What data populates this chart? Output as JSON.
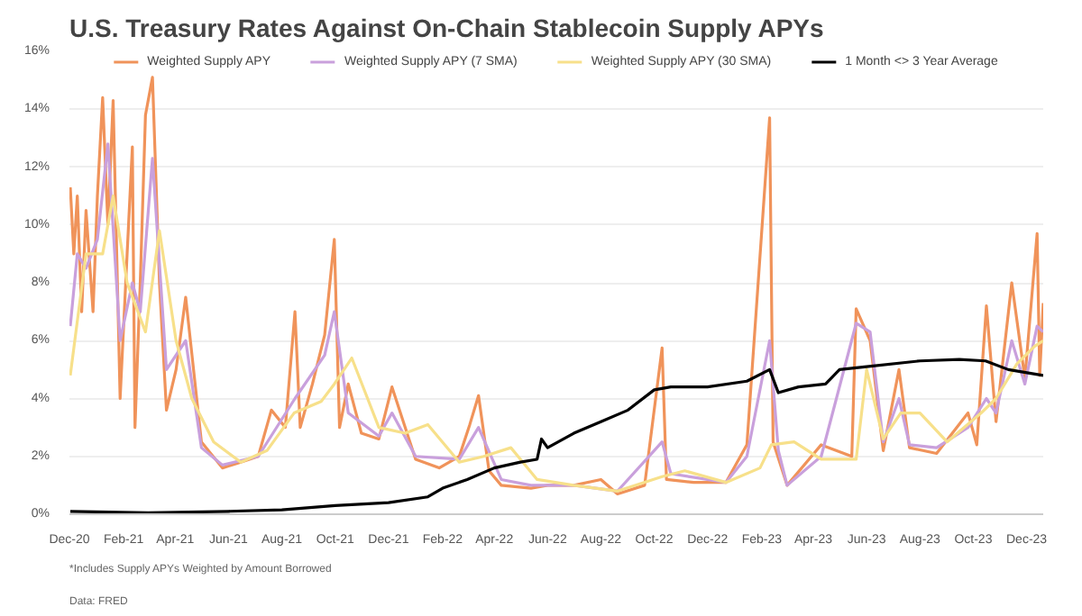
{
  "chart_data": {
    "type": "line",
    "title": "U.S. Treasury Rates Against On-Chain Stablecoin Supply APYs",
    "xlim": [
      "2020-12-01",
      "2023-12-20"
    ],
    "xticks": [
      {
        "value": "2020-12-01",
        "label": "Dec-20"
      },
      {
        "value": "2021-02-01",
        "label": "Feb-21"
      },
      {
        "value": "2021-04-01",
        "label": "Apr-21"
      },
      {
        "value": "2021-06-01",
        "label": "Jun-21"
      },
      {
        "value": "2021-08-01",
        "label": "Aug-21"
      },
      {
        "value": "2021-10-01",
        "label": "Oct-21"
      },
      {
        "value": "2021-12-01",
        "label": "Dec-21"
      },
      {
        "value": "2022-02-01",
        "label": "Feb-22"
      },
      {
        "value": "2022-04-01",
        "label": "Apr-22"
      },
      {
        "value": "2022-06-01",
        "label": "Jun-22"
      },
      {
        "value": "2022-08-01",
        "label": "Aug-22"
      },
      {
        "value": "2022-10-01",
        "label": "Oct-22"
      },
      {
        "value": "2022-12-01",
        "label": "Dec-22"
      },
      {
        "value": "2023-02-01",
        "label": "Feb-23"
      },
      {
        "value": "2023-04-01",
        "label": "Apr-23"
      },
      {
        "value": "2023-06-01",
        "label": "Jun-23"
      },
      {
        "value": "2023-08-01",
        "label": "Aug-23"
      },
      {
        "value": "2023-10-01",
        "label": "Oct-23"
      },
      {
        "value": "2023-12-01",
        "label": "Dec-23"
      }
    ],
    "ylim": [
      0,
      16
    ],
    "yticks": [
      {
        "value": 0,
        "label": "0%"
      },
      {
        "value": 2,
        "label": "2%"
      },
      {
        "value": 4,
        "label": "4%"
      },
      {
        "value": 6,
        "label": "6%"
      },
      {
        "value": 8,
        "label": "8%"
      },
      {
        "value": 10,
        "label": "10%"
      },
      {
        "value": 12,
        "label": "12%"
      },
      {
        "value": 14,
        "label": "14%"
      },
      {
        "value": 16,
        "label": "16%"
      }
    ],
    "grid": "y",
    "legend": "top",
    "marker": "none",
    "line_style": "solid",
    "series": [
      {
        "name": "Weighted Supply APY",
        "color": "#f0935a",
        "x": [
          "2020-12-02",
          "2020-12-06",
          "2020-12-10",
          "2020-12-15",
          "2020-12-20",
          "2020-12-28",
          "2021-01-02",
          "2021-01-08",
          "2021-01-14",
          "2021-01-20",
          "2021-01-28",
          "2021-02-05",
          "2021-02-11",
          "2021-02-14",
          "2021-02-20",
          "2021-02-26",
          "2021-03-06",
          "2021-03-14",
          "2021-03-22",
          "2021-04-02",
          "2021-04-13",
          "2021-05-01",
          "2021-05-25",
          "2021-06-15",
          "2021-07-05",
          "2021-07-20",
          "2021-08-05",
          "2021-08-16",
          "2021-08-22",
          "2021-09-05",
          "2021-09-19",
          "2021-09-30",
          "2021-10-06",
          "2021-10-16",
          "2021-10-31",
          "2021-11-20",
          "2021-12-05",
          "2022-01-01",
          "2022-01-28",
          "2022-02-20",
          "2022-03-04",
          "2022-03-14",
          "2022-03-26",
          "2022-04-09",
          "2022-05-13",
          "2022-06-01",
          "2022-07-01",
          "2022-08-01",
          "2022-08-20",
          "2022-09-20",
          "2022-10-10",
          "2022-10-15",
          "2022-11-15",
          "2022-12-22",
          "2023-01-15",
          "2023-02-10",
          "2023-02-14",
          "2023-03-02",
          "2023-04-10",
          "2023-05-15",
          "2023-05-20",
          "2023-06-05",
          "2023-06-20",
          "2023-07-08",
          "2023-07-20",
          "2023-08-20",
          "2023-09-25",
          "2023-10-05",
          "2023-10-16",
          "2023-10-27",
          "2023-11-14",
          "2023-11-29",
          "2023-12-13",
          "2023-12-16",
          "2023-12-20"
        ],
        "values": [
          11.3,
          9.0,
          11.0,
          7.0,
          10.5,
          7.0,
          11.0,
          14.4,
          10.0,
          14.3,
          4.0,
          9.0,
          12.7,
          3.0,
          8.0,
          13.8,
          15.1,
          8.0,
          3.6,
          5.0,
          7.5,
          2.5,
          1.6,
          1.8,
          2.0,
          3.6,
          3.0,
          7.0,
          3.0,
          4.5,
          6.2,
          9.5,
          3.0,
          4.5,
          2.8,
          2.6,
          4.4,
          1.9,
          1.6,
          2.0,
          3.1,
          4.1,
          1.5,
          1.0,
          0.9,
          1.0,
          1.0,
          1.2,
          0.7,
          1.0,
          5.75,
          1.2,
          1.1,
          1.1,
          2.4,
          13.7,
          2.5,
          1.0,
          2.4,
          2.0,
          7.1,
          6.0,
          2.2,
          5.0,
          2.3,
          2.1,
          3.5,
          2.4,
          7.2,
          3.2,
          8.0,
          4.7,
          9.7,
          4.8,
          7.3
        ]
      },
      {
        "name": "Weighted Supply APY (7 SMA)",
        "color": "#c9a0dc",
        "x": [
          "2020-12-02",
          "2020-12-10",
          "2020-12-20",
          "2021-01-02",
          "2021-01-14",
          "2021-01-28",
          "2021-02-11",
          "2021-02-20",
          "2021-03-06",
          "2021-03-22",
          "2021-04-13",
          "2021-05-01",
          "2021-05-25",
          "2021-07-05",
          "2021-08-16",
          "2021-09-19",
          "2021-09-30",
          "2021-10-16",
          "2021-11-20",
          "2021-12-05",
          "2022-01-01",
          "2022-02-20",
          "2022-03-14",
          "2022-04-09",
          "2022-05-13",
          "2022-07-01",
          "2022-08-20",
          "2022-10-10",
          "2022-10-20",
          "2022-12-22",
          "2023-01-15",
          "2023-02-10",
          "2023-02-20",
          "2023-03-02",
          "2023-04-10",
          "2023-05-20",
          "2023-06-05",
          "2023-06-20",
          "2023-07-08",
          "2023-07-20",
          "2023-08-20",
          "2023-09-25",
          "2023-10-16",
          "2023-10-27",
          "2023-11-14",
          "2023-11-29",
          "2023-12-13",
          "2023-12-20"
        ],
        "values": [
          6.5,
          9.0,
          8.5,
          9.5,
          12.8,
          6.0,
          8.0,
          7.0,
          12.3,
          5.0,
          6.0,
          2.3,
          1.7,
          2.0,
          4.0,
          5.5,
          7.0,
          3.5,
          2.7,
          3.5,
          2.0,
          1.9,
          3.0,
          1.2,
          1.0,
          1.0,
          0.8,
          2.5,
          1.4,
          1.1,
          2.0,
          6.0,
          2.2,
          1.0,
          2.0,
          6.6,
          6.3,
          2.5,
          4.0,
          2.4,
          2.3,
          3.0,
          4.0,
          3.5,
          6.0,
          4.5,
          6.5,
          6.3
        ]
      },
      {
        "name": "Weighted Supply APY (30 SMA)",
        "color": "#f7e08a",
        "x": [
          "2020-12-02",
          "2020-12-20",
          "2021-01-08",
          "2021-01-20",
          "2021-02-05",
          "2021-02-26",
          "2021-03-14",
          "2021-04-02",
          "2021-04-20",
          "2021-05-15",
          "2021-06-15",
          "2021-07-15",
          "2021-08-15",
          "2021-09-15",
          "2021-09-30",
          "2021-10-20",
          "2021-11-20",
          "2021-12-20",
          "2022-01-15",
          "2022-02-20",
          "2022-03-20",
          "2022-04-20",
          "2022-05-20",
          "2022-07-01",
          "2022-08-20",
          "2022-10-10",
          "2022-11-05",
          "2022-12-22",
          "2023-01-30",
          "2023-02-12",
          "2023-03-10",
          "2023-04-10",
          "2023-05-20",
          "2023-06-01",
          "2023-06-20",
          "2023-07-10",
          "2023-08-01",
          "2023-09-01",
          "2023-10-10",
          "2023-10-27",
          "2023-11-20",
          "2023-12-10",
          "2023-12-20"
        ],
        "values": [
          4.8,
          9.0,
          9.0,
          11.0,
          8.0,
          6.3,
          9.8,
          6.0,
          4.0,
          2.5,
          1.8,
          2.2,
          3.5,
          3.9,
          4.5,
          5.4,
          3.0,
          2.8,
          3.1,
          1.8,
          2.0,
          2.3,
          1.2,
          1.0,
          0.8,
          1.3,
          1.5,
          1.1,
          1.6,
          2.4,
          2.5,
          1.9,
          1.9,
          5.0,
          2.6,
          3.5,
          3.5,
          2.5,
          3.5,
          4.0,
          5.2,
          5.8,
          6.0
        ]
      },
      {
        "name": "1 Month <> 3 Year Average",
        "color": "#000000",
        "x": [
          "2020-12-02",
          "2021-03-01",
          "2021-06-01",
          "2021-08-01",
          "2021-10-01",
          "2021-12-01",
          "2022-01-15",
          "2022-02-01",
          "2022-03-01",
          "2022-04-01",
          "2022-05-01",
          "2022-05-20",
          "2022-05-25",
          "2022-06-01",
          "2022-07-01",
          "2022-08-01",
          "2022-09-01",
          "2022-10-01",
          "2022-10-20",
          "2022-12-01",
          "2023-01-15",
          "2023-02-10",
          "2023-02-20",
          "2023-03-15",
          "2023-04-15",
          "2023-05-01",
          "2023-06-01",
          "2023-08-01",
          "2023-09-15",
          "2023-10-15",
          "2023-11-10",
          "2023-12-20"
        ],
        "values": [
          0.1,
          0.05,
          0.1,
          0.15,
          0.3,
          0.4,
          0.6,
          0.9,
          1.2,
          1.6,
          1.8,
          1.9,
          2.6,
          2.3,
          2.8,
          3.2,
          3.6,
          4.3,
          4.4,
          4.4,
          4.6,
          5.0,
          4.2,
          4.4,
          4.5,
          5.0,
          5.1,
          5.3,
          5.35,
          5.3,
          5.0,
          4.8
        ]
      }
    ],
    "annotations": [
      "Data: FRED",
      "*Includes Supply APYs Weighted by Amount Borrowed"
    ]
  }
}
